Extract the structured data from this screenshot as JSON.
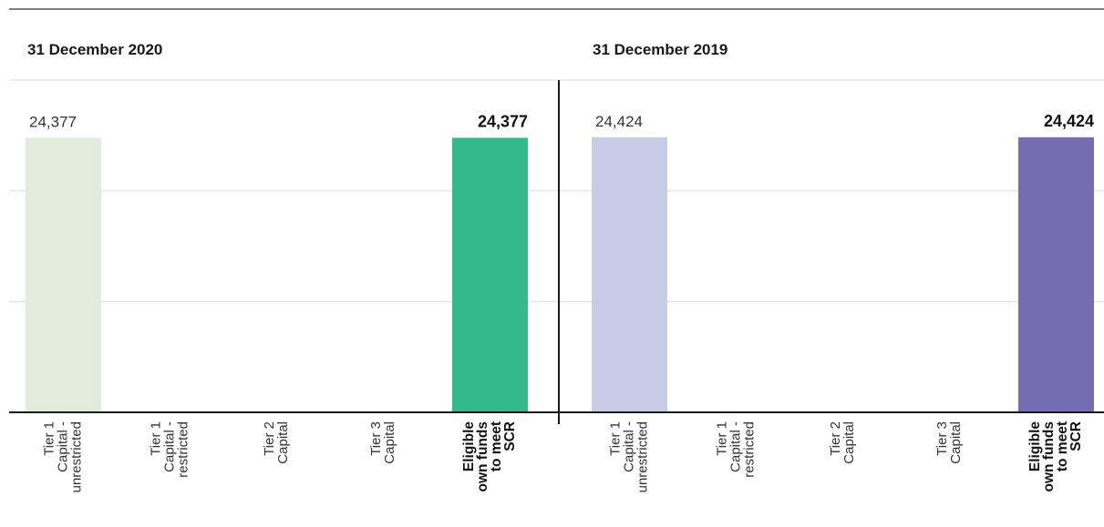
{
  "chart_data": [
    {
      "type": "bar",
      "title": "31 December 2020",
      "categories": [
        "Tier 1 Capital - unrestricted",
        "Tier 1 Capital - restricted",
        "Tier 2 Capital",
        "Tier 3 Capital",
        "Eligible own funds to meet SCR"
      ],
      "category_label_lines": [
        [
          "Tier 1",
          "Capital -",
          "unrestricted"
        ],
        [
          "Tier 1",
          "Capital -",
          "restricted"
        ],
        [
          "Tier 2",
          "Capital"
        ],
        [
          "Tier 3",
          "Capital"
        ],
        [
          "Eligible",
          "own funds",
          "to meet",
          "SCR"
        ]
      ],
      "values": [
        24377,
        0,
        0,
        0,
        24377
      ],
      "data_labels": [
        "24,377",
        "",
        "",
        "",
        "24,377"
      ],
      "colors": [
        "#e2ecdc",
        "#e2ecdc",
        "#e2ecdc",
        "#e2ecdc",
        "#34b98c"
      ],
      "ylim": [
        0,
        29500
      ],
      "grid": true,
      "xlabel": "",
      "ylabel": ""
    },
    {
      "type": "bar",
      "title": "31 December 2019",
      "categories": [
        "Tier 1 Capital - unrestricted",
        "Tier 1 Capital - restricted",
        "Tier 2 Capital",
        "Tier 3 Capital",
        "Eligible own funds to meet SCR"
      ],
      "category_label_lines": [
        [
          "Tier 1",
          "Capital -",
          "unrestricted"
        ],
        [
          "Tier 1",
          "Capital -",
          "restricted"
        ],
        [
          "Tier 2",
          "Capital"
        ],
        [
          "Tier 3",
          "Capital"
        ],
        [
          "Eligible",
          "own funds",
          "to meet",
          "SCR"
        ]
      ],
      "values": [
        24424,
        0,
        0,
        0,
        24424
      ],
      "data_labels": [
        "24,424",
        "",
        "",
        "",
        "24,424"
      ],
      "colors": [
        "#c8cde6",
        "#c8cde6",
        "#c8cde6",
        "#c8cde6",
        "#766db0"
      ],
      "ylim": [
        0,
        29500
      ],
      "grid": true,
      "xlabel": "",
      "ylabel": ""
    }
  ]
}
